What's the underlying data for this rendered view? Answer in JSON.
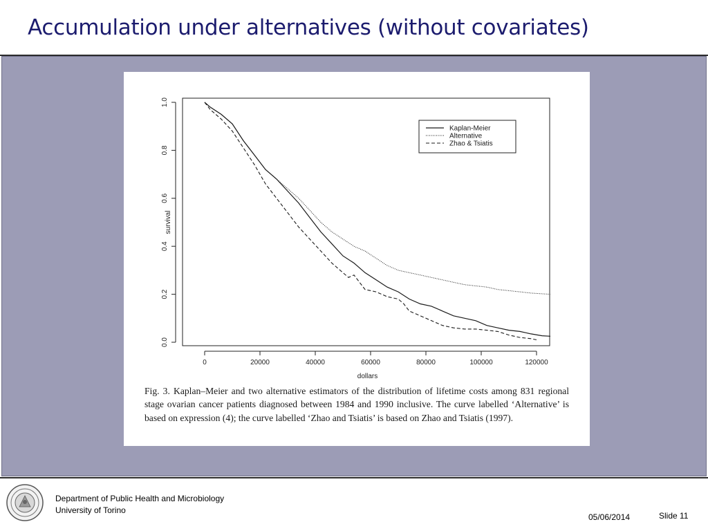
{
  "slide": {
    "title": "Accumulation under alternatives (without covariates)",
    "figure_caption": "Fig. 3. Kaplan–Meier and two alternative estimators of the distribution of lifetime costs among 831 regional stage ovarian cancer patients diagnosed between 1984 and 1990 inclusive. The curve labelled ‘Alternative’ is based on expression (4); the curve labelled ‘Zhao and Tsiatis’ is based on Zhao and Tsiatis (1997)."
  },
  "footer": {
    "department": "Department of Public Health and Microbiology",
    "university": "University of Torino",
    "date": "05/06/2014",
    "slide_number": "Slide 11"
  },
  "colors": {
    "title": "#1c1c6e",
    "panel": "#9c9cb6",
    "rule": "#2a2a2a"
  },
  "icons": {
    "logo": "university-seal-icon"
  },
  "chart_data": {
    "type": "line",
    "xlabel": "dollars",
    "ylabel": "survival",
    "xlim": [
      0,
      125000
    ],
    "ylim": [
      0,
      1.0
    ],
    "x_ticks": [
      0,
      20000,
      40000,
      60000,
      80000,
      100000,
      120000
    ],
    "x_tick_labels": [
      "0",
      "20000",
      "40000",
      "60000",
      "80000",
      "100000",
      "120000"
    ],
    "y_ticks": [
      0.0,
      0.2,
      0.4,
      0.6,
      0.8,
      1.0
    ],
    "y_tick_labels": [
      "0.0",
      "0.2",
      "0.4",
      "0.6",
      "0.8",
      "1.0"
    ],
    "grid": false,
    "legend": "top-right",
    "series": [
      {
        "name": "Kaplan-Meier",
        "line_style": "solid",
        "x": [
          0,
          2000,
          6000,
          10000,
          14000,
          18000,
          22000,
          26000,
          30000,
          34000,
          38000,
          42000,
          46000,
          50000,
          54000,
          58000,
          62000,
          66000,
          70000,
          74000,
          78000,
          82000,
          86000,
          90000,
          94000,
          98000,
          102000,
          106000,
          110000,
          114000,
          118000,
          122000,
          125000
        ],
        "y": [
          1.0,
          0.98,
          0.95,
          0.91,
          0.84,
          0.78,
          0.72,
          0.68,
          0.63,
          0.58,
          0.52,
          0.46,
          0.41,
          0.36,
          0.33,
          0.29,
          0.26,
          0.23,
          0.21,
          0.18,
          0.16,
          0.15,
          0.13,
          0.11,
          0.1,
          0.09,
          0.07,
          0.06,
          0.05,
          0.045,
          0.035,
          0.027,
          0.025
        ]
      },
      {
        "name": "Alternative",
        "line_style": "dotted",
        "x": [
          0,
          2000,
          6000,
          10000,
          14000,
          18000,
          22000,
          26000,
          30000,
          34000,
          38000,
          42000,
          46000,
          50000,
          54000,
          58000,
          62000,
          66000,
          70000,
          74000,
          78000,
          82000,
          86000,
          90000,
          94000,
          98000,
          102000,
          106000,
          110000,
          114000,
          118000,
          122000,
          125000
        ],
        "y": [
          1.0,
          0.98,
          0.95,
          0.91,
          0.84,
          0.78,
          0.72,
          0.68,
          0.64,
          0.6,
          0.55,
          0.5,
          0.46,
          0.43,
          0.4,
          0.38,
          0.35,
          0.32,
          0.3,
          0.29,
          0.28,
          0.27,
          0.26,
          0.25,
          0.24,
          0.235,
          0.23,
          0.22,
          0.215,
          0.21,
          0.205,
          0.202,
          0.2
        ]
      },
      {
        "name": "Zhao & Tsiatis",
        "line_style": "dashed",
        "x": [
          0,
          2000,
          6000,
          10000,
          14000,
          18000,
          22000,
          26000,
          30000,
          34000,
          38000,
          42000,
          46000,
          50000,
          52000,
          54000,
          56000,
          58000,
          62000,
          66000,
          70000,
          72000,
          74000,
          78000,
          82000,
          86000,
          90000,
          94000,
          98000,
          102000,
          106000,
          110000,
          114000,
          118000,
          120000
        ],
        "y": [
          1.0,
          0.97,
          0.93,
          0.88,
          0.81,
          0.74,
          0.66,
          0.6,
          0.54,
          0.48,
          0.43,
          0.38,
          0.33,
          0.29,
          0.27,
          0.28,
          0.25,
          0.22,
          0.21,
          0.19,
          0.18,
          0.16,
          0.13,
          0.11,
          0.09,
          0.07,
          0.06,
          0.055,
          0.055,
          0.05,
          0.045,
          0.03,
          0.02,
          0.015,
          0.01
        ]
      }
    ]
  }
}
